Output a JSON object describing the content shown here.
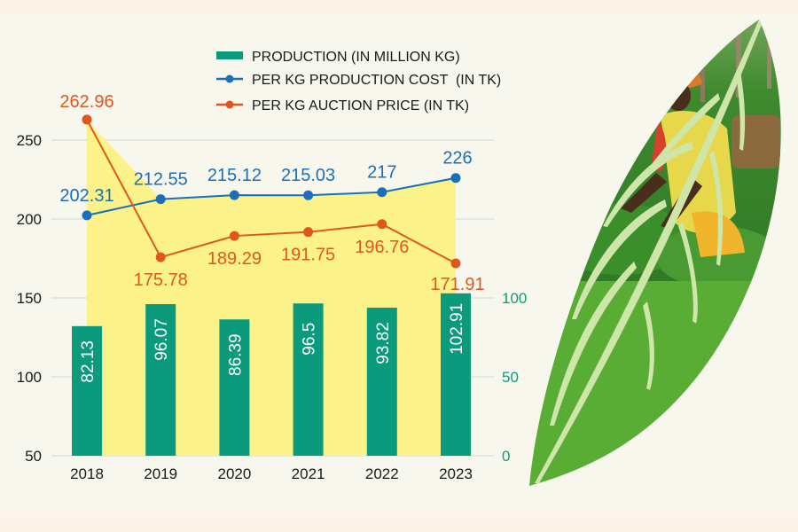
{
  "chart_data": {
    "type": "bar",
    "title": "",
    "categories": [
      "2018",
      "2019",
      "2020",
      "2021",
      "2022",
      "2023"
    ],
    "legend_position": "top",
    "grid": true,
    "left_axis": {
      "ticks": [
        50,
        100,
        150,
        200,
        250
      ],
      "range": [
        50,
        275
      ]
    },
    "right_axis": {
      "ticks": [
        0,
        50,
        100
      ],
      "range": [
        0,
        100
      ]
    },
    "series": [
      {
        "name": "PRODUCTION (IN MILLION KG)",
        "type": "bar",
        "axis": "right",
        "color": "#0c9a7d",
        "values": [
          82.13,
          96.07,
          86.39,
          96.5,
          93.82,
          102.91
        ],
        "labels": [
          "82.13",
          "96.07",
          "86.39",
          "96.5",
          "93.82",
          "102.91"
        ]
      },
      {
        "name": "PER KG PRODUCTION COST  (IN TK)",
        "type": "line",
        "axis": "left",
        "color": "#1a6fbb",
        "values": [
          202.31,
          212.55,
          215.12,
          215.03,
          217,
          226
        ],
        "labels": [
          "202.31",
          "212.55",
          "215.12",
          "215.03",
          "217",
          "226"
        ]
      },
      {
        "name": "PER KG AUCTION PRICE (IN TK)",
        "type": "line",
        "axis": "left",
        "color": "#e0571e",
        "values": [
          262.96,
          175.78,
          189.29,
          191.75,
          196.76,
          171.91
        ],
        "labels": [
          "262.96",
          "175.78",
          "189.29",
          "191.75",
          "196.76",
          "171.91"
        ]
      }
    ],
    "area_fill_color": "#fbf38a"
  },
  "colors": {
    "leaf_green": "#59ad35",
    "vein_light": "#cfe6ab",
    "tick_text_left": "#1a1a1a",
    "tick_text_right": "#0c9a7d",
    "grid": "#cfe3dc"
  },
  "illustration": {
    "description": "tea-leaf-shaped photo of a tea picker"
  }
}
